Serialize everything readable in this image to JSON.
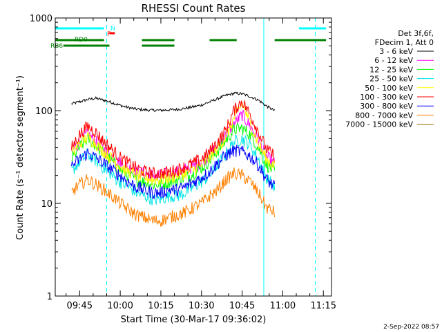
{
  "chart_data": {
    "type": "line",
    "title": "RHESSI Count Rates",
    "xlabel": "Start Time (30-Mar-17 09:36:02)",
    "ylabel": "Count Rate (s⁻¹ detector segment⁻¹)",
    "y_scale": "log",
    "ylim": [
      1,
      1000
    ],
    "xlim": [
      "09:36",
      "11:18"
    ],
    "x_ticks": [
      "09:45",
      "10:00",
      "10:15",
      "10:30",
      "10:45",
      "11:00",
      "11:15"
    ],
    "y_ticks": [
      "1",
      "10",
      "100",
      "1000"
    ],
    "legend_title": [
      "Det 3f,6f,",
      "FDecim 1, Att 0"
    ],
    "legend_position": "right",
    "footer": "2-Sep-2022 08:57",
    "x_times": [
      "09:42",
      "09:45",
      "09:48",
      "09:51",
      "09:54",
      "09:57",
      "10:00",
      "10:03",
      "10:06",
      "10:09",
      "10:12",
      "10:15",
      "10:18",
      "10:21",
      "10:24",
      "10:27",
      "10:30",
      "10:33",
      "10:36",
      "10:39",
      "10:42",
      "10:45",
      "10:48",
      "10:51",
      "10:54",
      "10:57"
    ],
    "series": [
      {
        "name": "3 - 6 keV",
        "color": "#000000",
        "values": [
          118,
          125,
          132,
          136,
          130,
          122,
          114,
          108,
          104,
          102,
          101,
          101,
          102,
          103,
          106,
          110,
          115,
          124,
          135,
          146,
          154,
          152,
          142,
          130,
          112,
          100
        ]
      },
      {
        "name": "6 - 12 keV",
        "color": "#ff00ff",
        "values": [
          36,
          46,
          56,
          46,
          38,
          32,
          27,
          24,
          22,
          21,
          20,
          20,
          21,
          22,
          23,
          25,
          28,
          33,
          42,
          55,
          72,
          90,
          68,
          48,
          32,
          27
        ]
      },
      {
        "name": "12 - 25 keV",
        "color": "#00ff00",
        "values": [
          30,
          40,
          50,
          42,
          34,
          28,
          23,
          20,
          18,
          17,
          16,
          16,
          17,
          18,
          19,
          21,
          24,
          29,
          37,
          48,
          62,
          65,
          55,
          40,
          26,
          22
        ]
      },
      {
        "name": "25 - 50 keV",
        "color": "#00e5e5",
        "values": [
          22,
          28,
          34,
          29,
          24,
          20,
          17,
          15,
          13,
          12,
          11,
          11,
          12,
          12,
          13,
          15,
          17,
          20,
          26,
          34,
          46,
          50,
          42,
          30,
          19,
          15
        ]
      },
      {
        "name": "50 - 100 keV",
        "color": "#ffff00",
        "values": [
          34,
          44,
          52,
          44,
          36,
          30,
          25,
          22,
          20,
          19,
          18,
          18,
          19,
          20,
          21,
          23,
          26,
          31,
          40,
          52,
          82,
          120,
          72,
          44,
          30,
          25
        ]
      },
      {
        "name": "100 - 300 keV",
        "color": "#ff0000",
        "values": [
          40,
          55,
          68,
          58,
          46,
          38,
          31,
          27,
          24,
          22,
          21,
          21,
          22,
          23,
          25,
          27,
          30,
          36,
          46,
          62,
          100,
          128,
          90,
          60,
          38,
          32
        ]
      },
      {
        "name": "300 - 800 keV",
        "color": "#0000ff",
        "values": [
          25,
          30,
          35,
          31,
          27,
          23,
          20,
          17,
          15,
          14,
          13,
          13,
          14,
          14,
          15,
          17,
          19,
          22,
          27,
          33,
          37,
          36,
          32,
          26,
          18,
          15
        ]
      },
      {
        "name": "800 - 7000 keV",
        "color": "#ff8000",
        "values": [
          13,
          16,
          18,
          16,
          14,
          12,
          10,
          8.5,
          7.5,
          7,
          6.5,
          6.5,
          7,
          7.5,
          8,
          9,
          10,
          12,
          14,
          18,
          21,
          20,
          17,
          13,
          9,
          8
        ]
      },
      {
        "name": "7000 - 15000 keV",
        "color": "#996600",
        "values": []
      }
    ],
    "attenuator_segments": [
      {
        "label": "N",
        "color": "#00ffff",
        "spans": [
          [
            "09:36",
            "09:54"
          ],
          [
            "11:06",
            "11:16"
          ]
        ]
      },
      {
        "label": "F",
        "color": "#ff0000",
        "spans": [
          [
            "09:56",
            "09:58"
          ]
        ]
      },
      {
        "label": "RD0",
        "color": "#008000",
        "spans": [
          [
            "09:36",
            "09:54"
          ],
          [
            "10:08",
            "10:20"
          ],
          [
            "10:33",
            "10:43"
          ],
          [
            "10:57",
            "11:16"
          ]
        ]
      },
      {
        "label": "RB6",
        "color": "#008000",
        "spans": [
          [
            "09:39",
            "09:56"
          ],
          [
            "10:08",
            "10:20"
          ]
        ]
      }
    ],
    "vertical_markers": [
      {
        "time": "09:36",
        "style": "solid",
        "color": "#00ffff"
      },
      {
        "time": "09:55",
        "style": "dashed",
        "color": "#00ffff"
      },
      {
        "time": "10:53",
        "style": "solid",
        "color": "#00ffff"
      },
      {
        "time": "11:12",
        "style": "dashed",
        "color": "#00ffff"
      }
    ]
  }
}
